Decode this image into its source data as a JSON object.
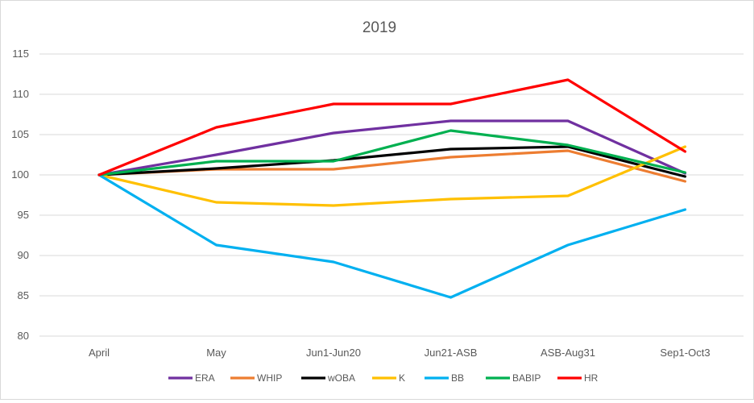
{
  "chart_data": {
    "type": "line",
    "title": "2019",
    "xlabel": "",
    "ylabel": "",
    "categories": [
      "April",
      "May",
      "Jun1-Jun20",
      "Jun21-ASB",
      "ASB-Aug31",
      "Sep1-Oct3"
    ],
    "ylim": [
      80,
      115
    ],
    "yticks": [
      80,
      85,
      90,
      95,
      100,
      105,
      110,
      115
    ],
    "grid": "horizontal",
    "legend_position": "bottom",
    "series": [
      {
        "name": "ERA",
        "color": "#7030a0",
        "values": [
          100,
          102.5,
          105.2,
          106.7,
          106.7,
          100.2
        ]
      },
      {
        "name": "WHIP",
        "color": "#ed7d31",
        "values": [
          100,
          100.7,
          100.7,
          102.2,
          103.0,
          99.2
        ]
      },
      {
        "name": "wOBA",
        "color": "#000000",
        "values": [
          100,
          100.8,
          101.8,
          103.2,
          103.5,
          99.8
        ]
      },
      {
        "name": "K",
        "color": "#ffc000",
        "values": [
          100,
          96.6,
          96.2,
          97.0,
          97.4,
          103.5
        ]
      },
      {
        "name": "BB",
        "color": "#00b0f0",
        "values": [
          100,
          91.3,
          89.2,
          84.8,
          91.3,
          95.7
        ]
      },
      {
        "name": "BABIP",
        "color": "#00b050",
        "values": [
          100,
          101.7,
          101.7,
          105.5,
          103.7,
          100.3
        ]
      },
      {
        "name": "HR",
        "color": "#ff0000",
        "values": [
          100,
          105.9,
          108.8,
          108.8,
          111.8,
          102.9
        ]
      }
    ]
  }
}
